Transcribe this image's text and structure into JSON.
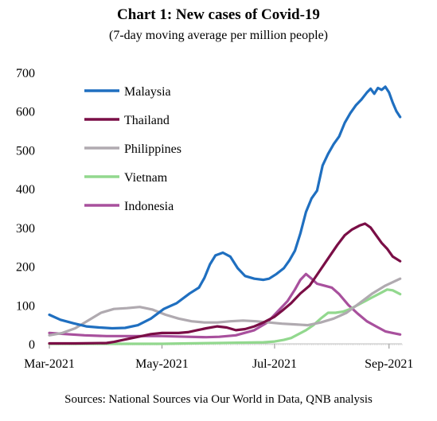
{
  "chart_data": {
    "type": "line",
    "title": "Chart 1: New cases of Covid-19",
    "subtitle": "(7-day moving average per million people)",
    "source": "Sources: National Sources via Our World in Data, QNB analysis",
    "xlabel": "",
    "ylabel": "",
    "x_range": [
      "2021-03-01",
      "2021-09-08"
    ],
    "ylim": [
      0,
      700
    ],
    "y_ticks": [
      0,
      100,
      200,
      300,
      400,
      500,
      600,
      700
    ],
    "x_ticks": [
      {
        "date": "2021-03-01",
        "label": "Mar-2021"
      },
      {
        "date": "2021-05-01",
        "label": "May-2021"
      },
      {
        "date": "2021-07-01",
        "label": "Jul-2021"
      },
      {
        "date": "2021-09-01",
        "label": "Sep-2021"
      }
    ],
    "grid": false,
    "legend_position": "top-left",
    "series": [
      {
        "name": "Malaysia",
        "color": "#1f6fc0",
        "points": [
          [
            "2021-03-01",
            75
          ],
          [
            "2021-03-07",
            62
          ],
          [
            "2021-03-14",
            53
          ],
          [
            "2021-03-21",
            45
          ],
          [
            "2021-03-28",
            42
          ],
          [
            "2021-04-04",
            40
          ],
          [
            "2021-04-11",
            41
          ],
          [
            "2021-04-18",
            48
          ],
          [
            "2021-04-25",
            65
          ],
          [
            "2021-05-02",
            90
          ],
          [
            "2021-05-09",
            105
          ],
          [
            "2021-05-16",
            130
          ],
          [
            "2021-05-21",
            145
          ],
          [
            "2021-05-24",
            170
          ],
          [
            "2021-05-27",
            205
          ],
          [
            "2021-05-30",
            228
          ],
          [
            "2021-06-03",
            235
          ],
          [
            "2021-06-07",
            225
          ],
          [
            "2021-06-11",
            195
          ],
          [
            "2021-06-15",
            175
          ],
          [
            "2021-06-20",
            168
          ],
          [
            "2021-06-25",
            165
          ],
          [
            "2021-06-28",
            168
          ],
          [
            "2021-07-02",
            180
          ],
          [
            "2021-07-06",
            195
          ],
          [
            "2021-07-09",
            215
          ],
          [
            "2021-07-12",
            240
          ],
          [
            "2021-07-15",
            285
          ],
          [
            "2021-07-18",
            340
          ],
          [
            "2021-07-21",
            375
          ],
          [
            "2021-07-24",
            395
          ],
          [
            "2021-07-27",
            460
          ],
          [
            "2021-07-30",
            490
          ],
          [
            "2021-08-02",
            515
          ],
          [
            "2021-08-05",
            535
          ],
          [
            "2021-08-08",
            570
          ],
          [
            "2021-08-11",
            595
          ],
          [
            "2021-08-14",
            615
          ],
          [
            "2021-08-17",
            630
          ],
          [
            "2021-08-20",
            648
          ],
          [
            "2021-08-22",
            658
          ],
          [
            "2021-08-24",
            645
          ],
          [
            "2021-08-26",
            660
          ],
          [
            "2021-08-28",
            655
          ],
          [
            "2021-08-30",
            663
          ],
          [
            "2021-09-01",
            648
          ],
          [
            "2021-09-03",
            622
          ],
          [
            "2021-09-05",
            600
          ],
          [
            "2021-09-07",
            585
          ]
        ]
      },
      {
        "name": "Thailand",
        "color": "#7a0e46",
        "points": [
          [
            "2021-03-01",
            1
          ],
          [
            "2021-03-15",
            1
          ],
          [
            "2021-04-01",
            2
          ],
          [
            "2021-04-05",
            5
          ],
          [
            "2021-04-10",
            10
          ],
          [
            "2021-04-15",
            15
          ],
          [
            "2021-04-20",
            20
          ],
          [
            "2021-04-25",
            25
          ],
          [
            "2021-05-01",
            28
          ],
          [
            "2021-05-10",
            28
          ],
          [
            "2021-05-15",
            30
          ],
          [
            "2021-05-20",
            35
          ],
          [
            "2021-05-25",
            40
          ],
          [
            "2021-05-31",
            45
          ],
          [
            "2021-06-05",
            42
          ],
          [
            "2021-06-10",
            35
          ],
          [
            "2021-06-15",
            38
          ],
          [
            "2021-06-20",
            45
          ],
          [
            "2021-06-25",
            55
          ],
          [
            "2021-07-01",
            70
          ],
          [
            "2021-07-05",
            85
          ],
          [
            "2021-07-10",
            105
          ],
          [
            "2021-07-15",
            130
          ],
          [
            "2021-07-20",
            150
          ],
          [
            "2021-07-25",
            185
          ],
          [
            "2021-07-30",
            220
          ],
          [
            "2021-08-04",
            255
          ],
          [
            "2021-08-08",
            280
          ],
          [
            "2021-08-12",
            295
          ],
          [
            "2021-08-16",
            305
          ],
          [
            "2021-08-19",
            310
          ],
          [
            "2021-08-22",
            300
          ],
          [
            "2021-08-25",
            280
          ],
          [
            "2021-08-28",
            260
          ],
          [
            "2021-08-31",
            245
          ],
          [
            "2021-09-03",
            225
          ],
          [
            "2021-09-07",
            213
          ]
        ]
      },
      {
        "name": "Philippines",
        "color": "#b0aab0",
        "points": [
          [
            "2021-03-01",
            22
          ],
          [
            "2021-03-08",
            28
          ],
          [
            "2021-03-15",
            40
          ],
          [
            "2021-03-22",
            60
          ],
          [
            "2021-03-29",
            80
          ],
          [
            "2021-04-05",
            90
          ],
          [
            "2021-04-12",
            92
          ],
          [
            "2021-04-19",
            95
          ],
          [
            "2021-04-26",
            88
          ],
          [
            "2021-05-03",
            75
          ],
          [
            "2021-05-10",
            65
          ],
          [
            "2021-05-17",
            58
          ],
          [
            "2021-05-24",
            55
          ],
          [
            "2021-05-31",
            55
          ],
          [
            "2021-06-07",
            58
          ],
          [
            "2021-06-14",
            60
          ],
          [
            "2021-06-21",
            58
          ],
          [
            "2021-06-28",
            55
          ],
          [
            "2021-07-05",
            52
          ],
          [
            "2021-07-12",
            50
          ],
          [
            "2021-07-19",
            48
          ],
          [
            "2021-07-26",
            55
          ],
          [
            "2021-08-02",
            65
          ],
          [
            "2021-08-09",
            80
          ],
          [
            "2021-08-16",
            105
          ],
          [
            "2021-08-23",
            130
          ],
          [
            "2021-08-30",
            150
          ],
          [
            "2021-09-07",
            168
          ]
        ]
      },
      {
        "name": "Vietnam",
        "color": "#92d88e",
        "points": [
          [
            "2021-03-01",
            0
          ],
          [
            "2021-04-01",
            0
          ],
          [
            "2021-05-01",
            0
          ],
          [
            "2021-05-15",
            1
          ],
          [
            "2021-06-01",
            2
          ],
          [
            "2021-06-15",
            3
          ],
          [
            "2021-06-25",
            4
          ],
          [
            "2021-07-01",
            6
          ],
          [
            "2021-07-06",
            10
          ],
          [
            "2021-07-10",
            15
          ],
          [
            "2021-07-14",
            25
          ],
          [
            "2021-07-18",
            35
          ],
          [
            "2021-07-22",
            48
          ],
          [
            "2021-07-26",
            65
          ],
          [
            "2021-07-30",
            80
          ],
          [
            "2021-08-03",
            80
          ],
          [
            "2021-08-07",
            83
          ],
          [
            "2021-08-11",
            90
          ],
          [
            "2021-08-15",
            100
          ],
          [
            "2021-08-19",
            110
          ],
          [
            "2021-08-23",
            120
          ],
          [
            "2021-08-27",
            130
          ],
          [
            "2021-08-31",
            140
          ],
          [
            "2021-09-03",
            138
          ],
          [
            "2021-09-07",
            128
          ]
        ]
      },
      {
        "name": "Indonesia",
        "color": "#a8509d",
        "points": [
          [
            "2021-03-01",
            28
          ],
          [
            "2021-03-10",
            25
          ],
          [
            "2021-03-20",
            22
          ],
          [
            "2021-04-01",
            20
          ],
          [
            "2021-04-15",
            20
          ],
          [
            "2021-05-01",
            20
          ],
          [
            "2021-05-15",
            18
          ],
          [
            "2021-05-25",
            17
          ],
          [
            "2021-06-01",
            18
          ],
          [
            "2021-06-10",
            22
          ],
          [
            "2021-06-20",
            35
          ],
          [
            "2021-06-27",
            55
          ],
          [
            "2021-07-03",
            85
          ],
          [
            "2021-07-08",
            110
          ],
          [
            "2021-07-12",
            140
          ],
          [
            "2021-07-15",
            165
          ],
          [
            "2021-07-18",
            180
          ],
          [
            "2021-07-21",
            168
          ],
          [
            "2021-07-24",
            155
          ],
          [
            "2021-07-28",
            150
          ],
          [
            "2021-08-01",
            145
          ],
          [
            "2021-08-05",
            128
          ],
          [
            "2021-08-10",
            100
          ],
          [
            "2021-08-15",
            78
          ],
          [
            "2021-08-20",
            58
          ],
          [
            "2021-08-25",
            45
          ],
          [
            "2021-08-30",
            32
          ],
          [
            "2021-09-03",
            28
          ],
          [
            "2021-09-07",
            24
          ]
        ]
      }
    ]
  }
}
